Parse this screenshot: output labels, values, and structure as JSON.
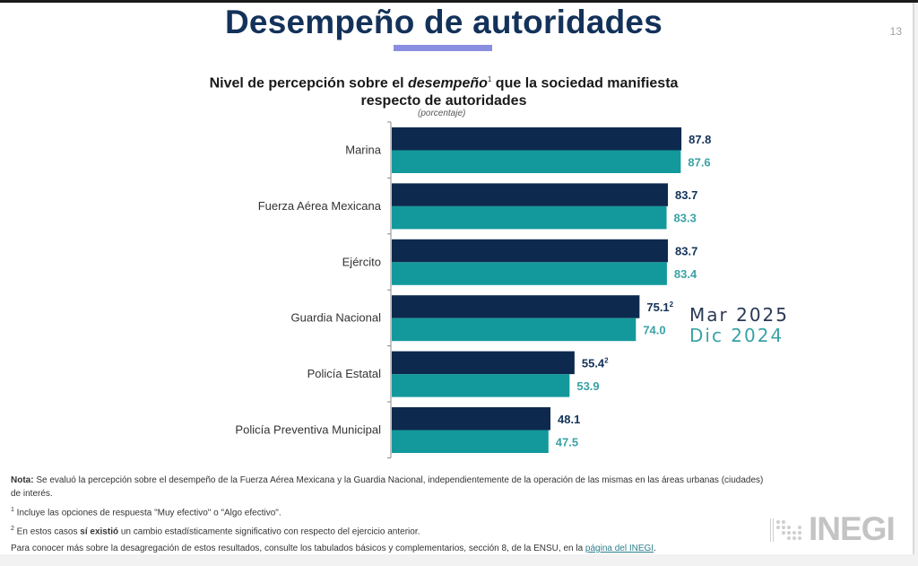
{
  "slide": {
    "title": "Desempeño de autoridades",
    "page_number": "13"
  },
  "chart_data": {
    "type": "bar",
    "orientation": "horizontal",
    "title_part1": "Nivel de percepción sobre el ",
    "title_italic": "desempeño",
    "title_sup": "1",
    "title_part2": " que la sociedad manifiesta",
    "title_line2": "respecto de autoridades",
    "unit": "(porcentaje)",
    "categories": [
      "Marina",
      "Fuerza Aérea Mexicana",
      "Ejército",
      "Guardia Nacional",
      "Policía Estatal",
      "Policía Preventiva Municipal"
    ],
    "series": [
      {
        "name": "Mar 2025",
        "color": "#0d2a4e",
        "values": [
          87.8,
          83.7,
          83.7,
          75.1,
          55.4,
          48.1
        ],
        "labels": [
          "87.8",
          "83.7",
          "83.7",
          "75.1",
          "55.4",
          "48.1"
        ],
        "marks": [
          "",
          "",
          "",
          "2",
          "2",
          ""
        ]
      },
      {
        "name": "Dic 2024",
        "color": "#13999b",
        "values": [
          87.6,
          83.3,
          83.4,
          74.0,
          53.9,
          47.5
        ],
        "labels": [
          "87.6",
          "83.3",
          "83.4",
          "74.0",
          "53.9",
          "47.5"
        ],
        "marks": [
          "",
          "",
          "",
          "",
          "",
          ""
        ]
      }
    ],
    "xlim": [
      0,
      100
    ],
    "grid": false,
    "legend_placement": "right"
  },
  "notes": {
    "nota_label": "Nota:",
    "nota_text": " Se evaluó la percepción sobre el desempeño de la Fuerza Aérea Mexicana y la Guardia Nacional, independientemente de la operación de las mismas en las áreas urbanas (ciudades) de interés.",
    "fn1_mark": "1",
    "fn1_text": " Incluye las opciones de respuesta \"Muy efectivo\" o \"Algo efectivo\".",
    "fn2_mark": "2",
    "fn2_text_a": " En estos casos ",
    "fn2_bold": "sí existió",
    "fn2_text_b": " un cambio estadísticamente significativo con respecto del ejercicio anterior.",
    "more_text": "Para conocer más sobre la desagregación de estos resultados, consulte los tabulados básicos y complementarios, sección 8, de la ENSU, en la ",
    "more_link": "página del INEGI",
    "more_end": "."
  },
  "logo": {
    "text": "INEGI"
  }
}
